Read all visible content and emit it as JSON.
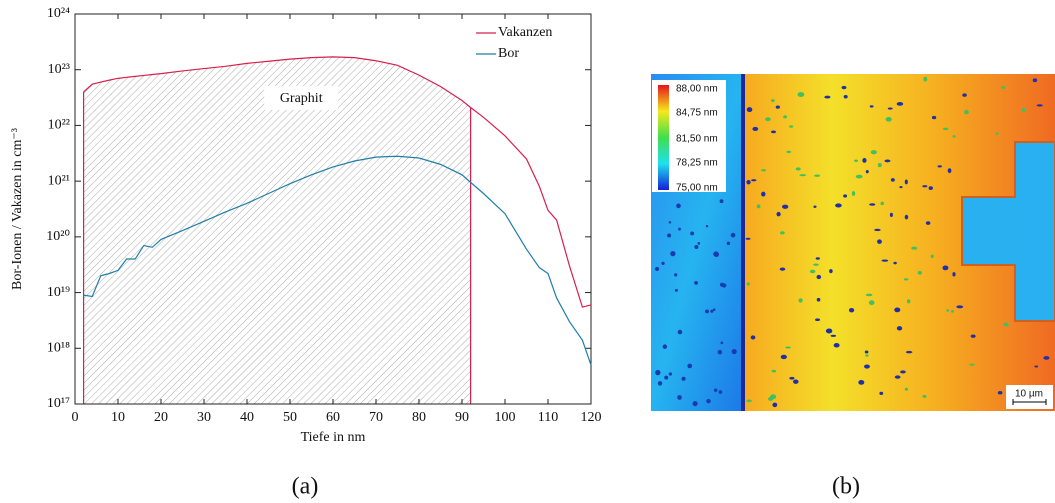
{
  "chart_data": {
    "type": "line",
    "x_label": "Tiefe in nm",
    "y_label": "Bor-Ionen / Vakazen in cm⁻³",
    "xlim": [
      0,
      120
    ],
    "xticks": [
      0,
      10,
      20,
      30,
      40,
      50,
      60,
      70,
      80,
      90,
      100,
      110,
      120
    ],
    "ylim": [
      1e+17,
      1e+24
    ],
    "ylog": true,
    "yticks": [
      {
        "value": 1e+17,
        "label": "10¹⁷"
      },
      {
        "value": 1e+18,
        "label": "10¹⁸"
      },
      {
        "value": 1e+19,
        "label": "10¹⁹"
      },
      {
        "value": 1e+20,
        "label": "10²⁰"
      },
      {
        "value": 1e+21,
        "label": "10²¹"
      },
      {
        "value": 1e+22,
        "label": "10²²"
      },
      {
        "value": 1e+23,
        "label": "10²³"
      },
      {
        "value": 1e+24,
        "label": "10²⁴"
      }
    ],
    "legend": "upper-right",
    "x": [
      2,
      4,
      6,
      8,
      10,
      12,
      14,
      16,
      18,
      20,
      25,
      30,
      35,
      40,
      45,
      50,
      55,
      60,
      65,
      70,
      75,
      80,
      85,
      90,
      92,
      95,
      100,
      105,
      108,
      110,
      112,
      115,
      118,
      120
    ],
    "series": [
      {
        "name": "Vakanzen",
        "color": "#d6204e",
        "values": [
          4e+22,
          5.5e+22,
          6e+22,
          6.5e+22,
          7e+22,
          7.3e+22,
          7.6e+22,
          7.9e+22,
          8.2e+22,
          8.5e+22,
          9.5e+22,
          1.05e+23,
          1.15e+23,
          1.3e+23,
          1.42e+23,
          1.55e+23,
          1.65e+23,
          1.7e+23,
          1.65e+23,
          1.45e+23,
          1.2e+23,
          8e+22,
          5e+22,
          2.8e+22,
          2.1e+22,
          1.4e+22,
          6.5e+21,
          2.5e+21,
          8e+20,
          3e+20,
          2e+20,
          3e+19,
          5.5e+18,
          6e+18
        ]
      },
      {
        "name": "Bor",
        "color": "#1f7fa8",
        "values": [
          9e+18,
          8.5e+18,
          2e+19,
          2.2e+19,
          2.5e+19,
          4e+19,
          4e+19,
          7e+19,
          6.5e+19,
          9e+19,
          1.3e+20,
          1.9e+20,
          2.8e+20,
          4e+20,
          6e+20,
          9e+20,
          1.3e+21,
          1.8e+21,
          2.3e+21,
          2.7e+21,
          2.8e+21,
          2.6e+21,
          2e+21,
          1.3e+21,
          9.5e+20,
          6e+20,
          2.6e+20,
          6e+19,
          2.8e+19,
          2.2e+19,
          8e+18,
          3e+18,
          1.4e+18,
          5e+17
        ]
      }
    ],
    "hatched_xrange": [
      2,
      92
    ],
    "annotation": "Graphit"
  },
  "image": {
    "colorbar_labels": [
      "88,00 nm",
      "84,75 nm",
      "81,50 nm",
      "78,25 nm",
      "75,00 nm"
    ],
    "scale_bar": "10 µm"
  },
  "captions": [
    "(a)",
    "(b)"
  ]
}
